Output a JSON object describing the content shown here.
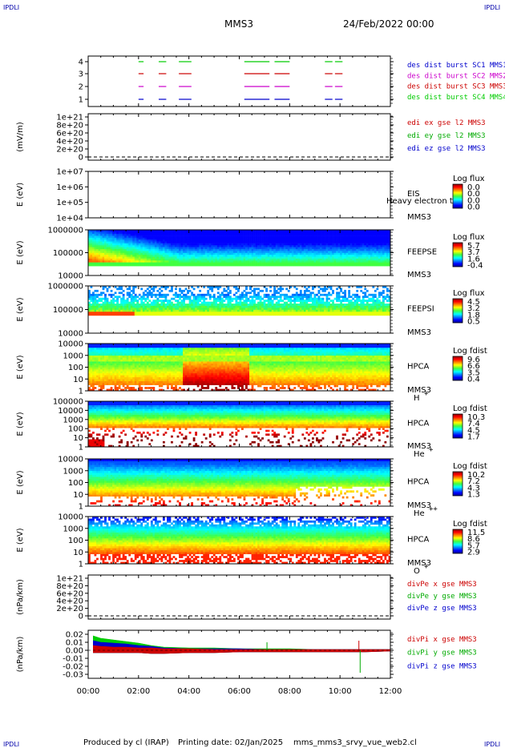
{
  "header": {
    "corner_left": "IPDLI",
    "corner_right": "IPDLI",
    "spacecraft": "MMS3",
    "date": "24/Feb/2022 00:00"
  },
  "footer": {
    "produced": "Produced by cl (IRAP)",
    "printing": "Printing date: 02/Jan/2025",
    "file": "mms_mms3_srvy_vue_web2.cl"
  },
  "chart_data": {
    "type": "multi-panel time series / spectrogram",
    "x_axis": {
      "ticks": [
        "00:00",
        "02:00",
        "04:00",
        "06:00",
        "08:00",
        "10:00",
        "12:00"
      ],
      "range_hours": [
        0,
        12
      ]
    },
    "panels": [
      {
        "name": "burst",
        "y_ticks": [
          "4",
          "3",
          "2",
          "1"
        ],
        "ylabel": "",
        "legend": [
          {
            "label": "des dist burst SC1 MMS1",
            "color": "#0000cc"
          },
          {
            "label": "des dist burst SC2 MMS2",
            "color": "#cc00cc"
          },
          {
            "label": "des dist burst SC3 MMS3",
            "color": "#cc0000"
          },
          {
            "label": "des dist burst SC4 MMS4",
            "color": "#00cc00"
          }
        ],
        "segments_hours": [
          [
            2.0,
            2.2
          ],
          [
            2.8,
            3.1
          ],
          [
            3.6,
            4.1
          ],
          [
            6.2,
            7.2
          ],
          [
            7.4,
            8.0
          ],
          [
            9.4,
            9.7
          ],
          [
            9.8,
            10.1
          ]
        ],
        "lane_colors": [
          "#00cc00",
          "#cc0000",
          "#cc00cc",
          "#0000cc"
        ]
      },
      {
        "name": "edi",
        "ylabel": "(mV/m)",
        "y_ticks": [
          "1e+21",
          "8e+20",
          "6e+20",
          "4e+20",
          "2e+20",
          "0"
        ],
        "legend": [
          {
            "label": "edi ex gse l2 MMS3",
            "color": "#cc0000"
          },
          {
            "label": "edi ey gse l2 MMS3",
            "color": "#00aa00"
          },
          {
            "label": "edi ez gse l2 MMS3",
            "color": "#0000cc"
          }
        ]
      },
      {
        "name": "eis",
        "ylabel": "E (eV)",
        "y_ticks": [
          "1e+07",
          "1e+06",
          "1e+05",
          "1e+04"
        ],
        "instrument": [
          "EIS",
          "MMS3"
        ],
        "overlay_text": "Heavy electron tof",
        "colorbar": {
          "title": "Log flux",
          "labels": [
            "0.0",
            "0.0",
            "0.0",
            "0.0"
          ]
        }
      },
      {
        "name": "feepse",
        "ylabel": "E (eV)",
        "y_ticks": [
          "1000000",
          "100000",
          "10000"
        ],
        "instrument": [
          "FEEPSE",
          "MMS3"
        ],
        "colorbar": {
          "title": "Log flux",
          "labels": [
            "5.7",
            "3.7",
            "1.6",
            "-0.4"
          ]
        }
      },
      {
        "name": "feepsi",
        "ylabel": "E (eV)",
        "y_ticks": [
          "1000000",
          "100000",
          "10000"
        ],
        "instrument": [
          "FEEPSI",
          "MMS3"
        ],
        "colorbar": {
          "title": "Log flux",
          "labels": [
            "4.5",
            "3.2",
            "1.8",
            "0.5"
          ]
        }
      },
      {
        "name": "hpca_h",
        "ylabel": "E (eV)",
        "y_ticks": [
          "10000",
          "1000",
          "100",
          "10",
          "1"
        ],
        "instrument": [
          "HPCA",
          "MMS3"
        ],
        "species": "H",
        "species_sup": "+",
        "colorbar": {
          "title": "Log fdist",
          "labels": [
            "9.6",
            "6.6",
            "3.5",
            "0.4"
          ]
        }
      },
      {
        "name": "hpca_he",
        "ylabel": "E (eV)",
        "y_ticks": [
          "100000",
          "10000",
          "1000",
          "100",
          "10",
          "1"
        ],
        "instrument": [
          "HPCA",
          "MMS3"
        ],
        "species": "He",
        "species_sup": "+",
        "colorbar": {
          "title": "Log fdist",
          "labels": [
            "10.3",
            "7.4",
            "4.5",
            "1.7"
          ]
        }
      },
      {
        "name": "hpca_hepp",
        "ylabel": "E (eV)",
        "y_ticks": [
          "10000",
          "1000",
          "100",
          "10",
          "1"
        ],
        "instrument": [
          "HPCA",
          "MMS3"
        ],
        "species": "He",
        "species_sup": "++",
        "colorbar": {
          "title": "Log fdist",
          "labels": [
            "10.2",
            "7.2",
            "4.3",
            "1.3"
          ]
        }
      },
      {
        "name": "hpca_o",
        "ylabel": "E (eV)",
        "y_ticks": [
          "10000",
          "1000",
          "100",
          "10",
          "1"
        ],
        "instrument": [
          "HPCA",
          "MMS3"
        ],
        "species": "O",
        "species_sup": "+",
        "colorbar": {
          "title": "Log fdist",
          "labels": [
            "11.5",
            "8.6",
            "5.7",
            "2.9"
          ]
        }
      },
      {
        "name": "divpe",
        "ylabel": "(nPa/km)",
        "y_ticks": [
          "1e+21",
          "8e+20",
          "6e+20",
          "4e+20",
          "2e+20",
          "0"
        ],
        "legend": [
          {
            "label": "divPe x gse MMS3",
            "color": "#cc0000"
          },
          {
            "label": "divPe y gse MMS3",
            "color": "#00aa00"
          },
          {
            "label": "divPe z gse MMS3",
            "color": "#0000cc"
          }
        ]
      },
      {
        "name": "divpi",
        "ylabel": "(nPa/km)",
        "y_ticks": [
          "0.02",
          "0.01",
          "0.00",
          "-0.01",
          "-0.02",
          "-0.03"
        ],
        "ylim": [
          -0.035,
          0.025
        ],
        "legend": [
          {
            "label": "divPi x gse MMS3",
            "color": "#cc0000"
          },
          {
            "label": "divPi y gse MMS3",
            "color": "#00aa00"
          },
          {
            "label": "divPi z gse MMS3",
            "color": "#0000cc"
          }
        ],
        "envelope": {
          "hours": [
            0.2,
            0.5,
            1.0,
            1.5,
            2.0,
            2.5,
            3.0,
            4.0,
            5.0,
            6.0,
            7.0,
            8.0,
            9.0,
            10.0,
            11.0,
            12.0
          ],
          "y_upper": [
            0.018,
            0.015,
            0.013,
            0.011,
            0.009,
            0.006,
            0.004,
            0.003,
            0.003,
            0.002,
            0.002,
            0.002,
            0.001,
            0.001,
            0.001,
            0.001
          ],
          "z_upper": [
            0.012,
            0.01,
            0.009,
            0.008,
            0.006,
            0.005,
            0.003,
            0.002,
            0.002,
            0.002,
            0.001,
            0.001,
            0.001,
            0.001,
            0.001,
            0.001
          ],
          "x_upper": [
            0.006,
            0.005,
            0.004,
            0.004,
            0.003,
            0.003,
            0.002,
            0.002,
            0.001,
            0.001,
            0.001,
            0.001,
            0.001,
            0.001,
            0.001,
            0.001
          ],
          "lower": [
            -0.003,
            -0.003,
            -0.003,
            -0.003,
            -0.003,
            -0.004,
            -0.004,
            -0.003,
            -0.003,
            -0.002,
            -0.002,
            -0.002,
            -0.002,
            -0.002,
            -0.002,
            -0.001
          ]
        },
        "spikes": [
          {
            "hour": 10.75,
            "color": "#cc0000",
            "y": 0.012
          },
          {
            "hour": 10.8,
            "color": "#00aa00",
            "y": -0.028
          },
          {
            "hour": 7.1,
            "color": "#00aa00",
            "y": 0.01
          }
        ]
      }
    ]
  }
}
